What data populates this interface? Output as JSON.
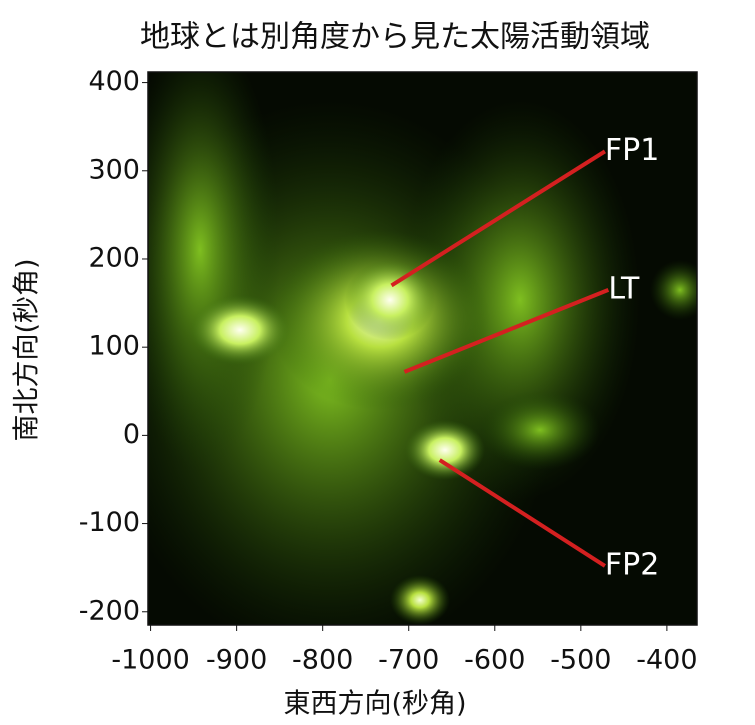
{
  "chart_data": {
    "type": "image",
    "title": "地球とは別角度から見た太陽活動領域",
    "x_label": "東西方向(秒角)",
    "y_label": "南北方向(秒角)",
    "xlim": [
      -1003,
      -365
    ],
    "ylim": [
      -215,
      412
    ],
    "xticks": [
      -1000,
      -900,
      -800,
      -700,
      -600,
      -500,
      -400
    ],
    "yticks": [
      400,
      300,
      200,
      100,
      0,
      -100,
      -200
    ],
    "annotations": [
      {
        "text": "FP1",
        "x": -472,
        "y": 322,
        "px": -720,
        "py": 170
      },
      {
        "text": "LT",
        "x": -468,
        "y": 165,
        "px": -705,
        "py": 72
      },
      {
        "text": "FP2",
        "x": -472,
        "y": -148,
        "px": -664,
        "py": -28
      }
    ],
    "annotation_color": "#d42020"
  }
}
